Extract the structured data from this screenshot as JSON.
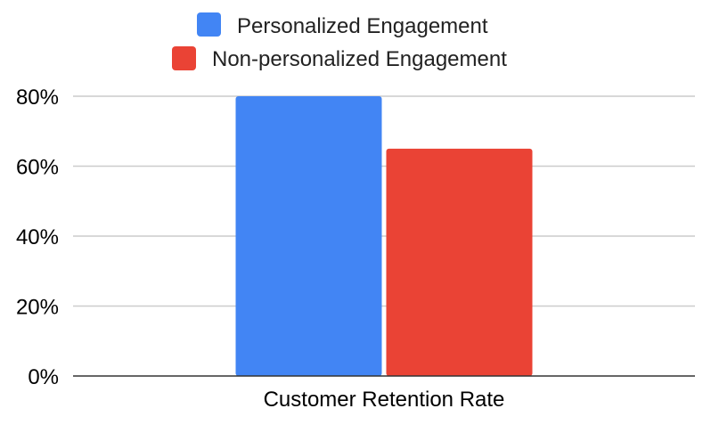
{
  "chart_data": {
    "type": "bar",
    "categories": [
      "Customer Retention Rate"
    ],
    "series": [
      {
        "name": "Personalized Engagement",
        "values": [
          80
        ],
        "color": "#4285f4"
      },
      {
        "name": "Non-personalized Engagement",
        "values": [
          65
        ],
        "color": "#ea4335"
      }
    ],
    "y_ticks": [
      {
        "value": 0,
        "label": "0%"
      },
      {
        "value": 20,
        "label": "20%"
      },
      {
        "value": 40,
        "label": "40%"
      },
      {
        "value": 60,
        "label": "60%"
      },
      {
        "value": 80,
        "label": "80%"
      }
    ],
    "ylim": [
      0,
      80
    ],
    "grid": true,
    "legend_position": "top-center",
    "title": "",
    "xlabel": "",
    "ylabel": ""
  }
}
